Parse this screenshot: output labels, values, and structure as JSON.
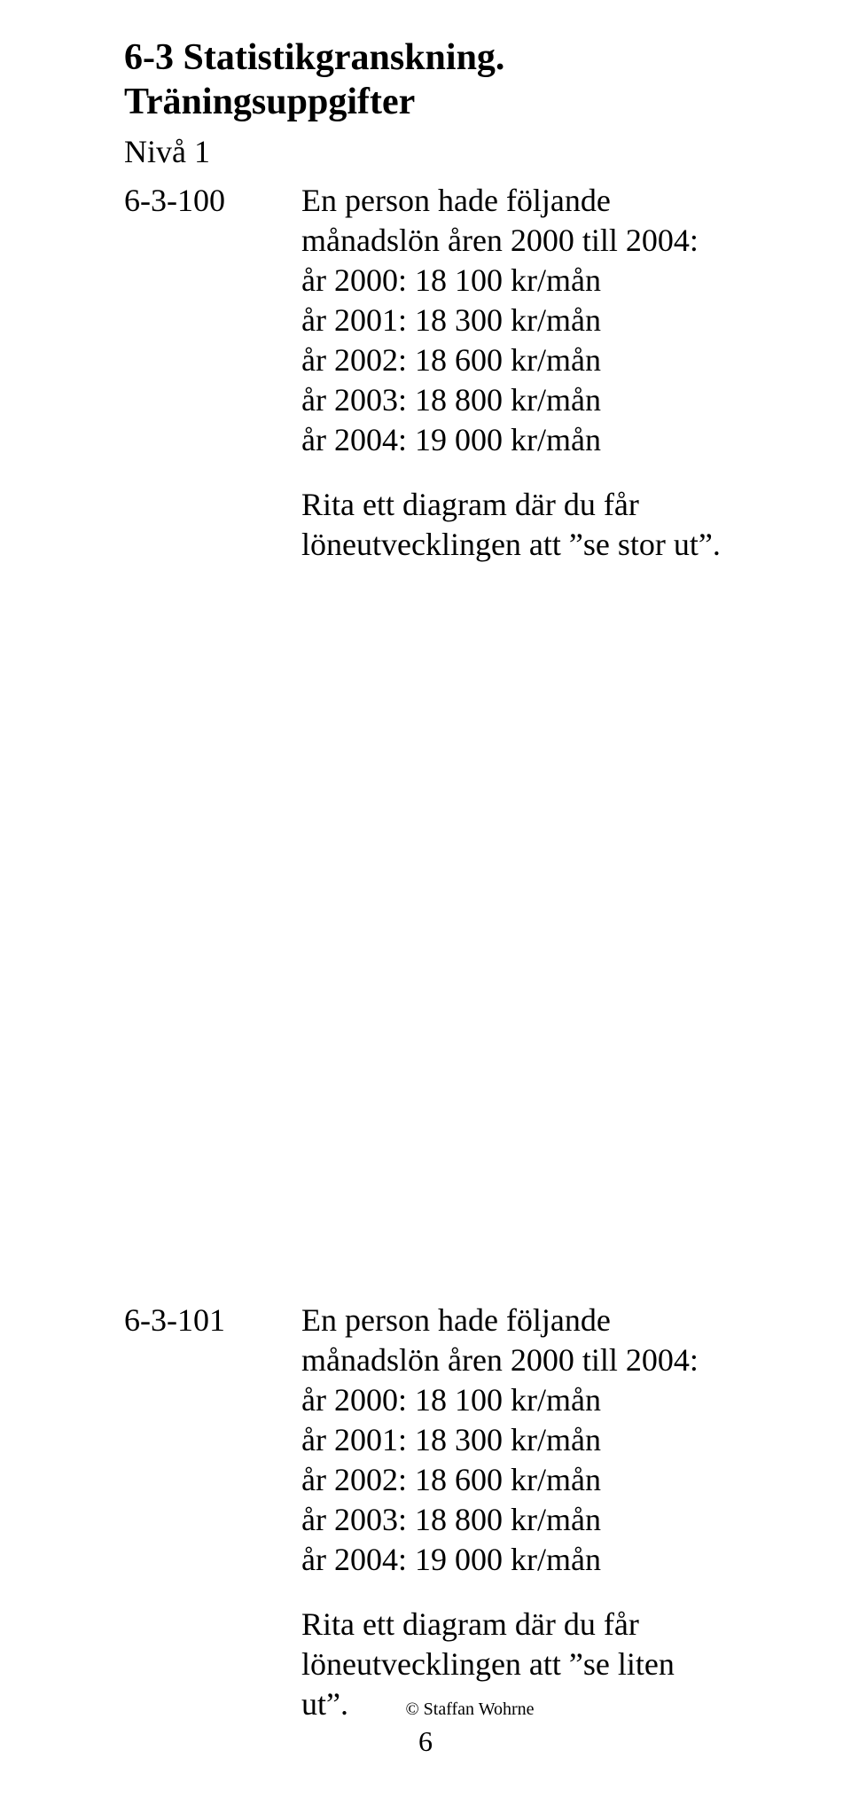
{
  "title": "6-3 Statistikgranskning. Träningsuppgifter",
  "level": "Nivå 1",
  "exercises": [
    {
      "id": "6-3-100",
      "intro": "En person hade följande månadslön åren 2000 till 2004:",
      "lines": [
        "år 2000: 18 100 kr/mån",
        "år 2001: 18 300 kr/mån",
        "år 2002: 18 600 kr/mån",
        "år 2003: 18 800 kr/mån",
        "år 2004: 19 000 kr/mån"
      ],
      "task": "Rita ett diagram där du får löneutvecklingen att ”se stor ut”."
    },
    {
      "id": "6-3-101",
      "intro": "En person hade följande månadslön åren 2000 till 2004:",
      "lines": [
        "år 2000: 18 100 kr/mån",
        "år 2001: 18 300 kr/mån",
        "år 2002: 18 600 kr/mån",
        "år 2003: 18 800 kr/mån",
        "år 2004: 19 000 kr/mån"
      ],
      "task": "Rita ett diagram där du får löneutvecklingen att ”se liten ut”."
    }
  ],
  "footer": {
    "copyright": "© Staffan Wohrne",
    "page": "6"
  }
}
